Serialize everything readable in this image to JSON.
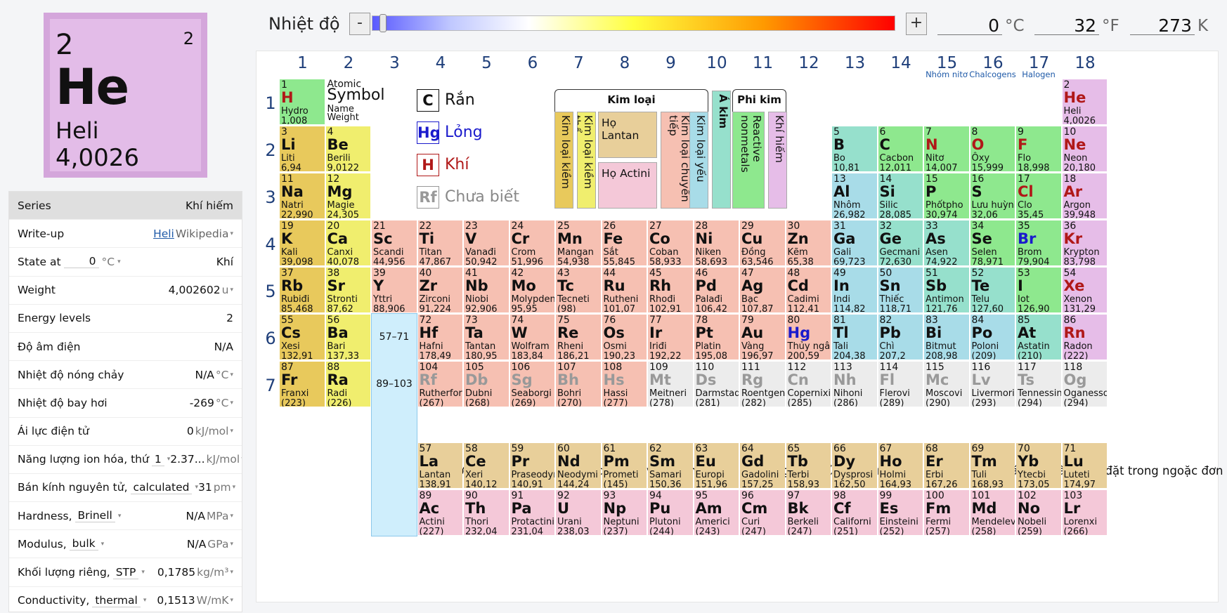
{
  "selected": {
    "number": "2",
    "symbol": "He",
    "name": "Heli",
    "weight": "4,0026",
    "shells": "2"
  },
  "temperature": {
    "label": "Nhiệt độ",
    "minus": "-",
    "plus": "+",
    "c": "0",
    "c_unit": "°C",
    "f": "32",
    "f_unit": "°F",
    "k": "273",
    "k_unit": "K"
  },
  "props": [
    {
      "label": "Series",
      "value": "Khí hiếm",
      "unit": ""
    },
    {
      "label": "Write-up",
      "link": "Heli",
      "value": "Wikipedia",
      "unit": ""
    },
    {
      "label": "State at",
      "input": "0",
      "input_unit": "°C",
      "value": "Khí",
      "unit": ""
    },
    {
      "label": "Weight",
      "value": "4,002602",
      "unit": "u"
    },
    {
      "label": "Energy levels",
      "value": "2",
      "unit": ""
    },
    {
      "label": "Độ âm điện",
      "value": "N/A",
      "unit": ""
    },
    {
      "label": "Nhiệt độ nóng chảy",
      "value": "N/A",
      "unit": "°C"
    },
    {
      "label": "Nhiệt độ bay hơi",
      "value": "-269",
      "unit": "°C"
    },
    {
      "label": "Ái lực điện tử",
      "value": "0",
      "unit": "kJ/mol"
    },
    {
      "label": "Năng lượng ion hóa, thứ",
      "select": "1",
      "value": "2.37...",
      "unit": "kJ/mol"
    },
    {
      "label": "Bán kính nguyên tử,",
      "select": "calculated",
      "value": "31",
      "unit": "pm"
    },
    {
      "label": "Hardness,",
      "select": "Brinell",
      "value": "N/A",
      "unit": "MPa"
    },
    {
      "label": "Modulus,",
      "select": "bulk",
      "value": "N/A",
      "unit": "GPa"
    },
    {
      "label": "Khối lượng riêng,",
      "select": "STP",
      "value": "0,1785",
      "unit": "kg/m³"
    },
    {
      "label": "Conductivity,",
      "select": "thermal",
      "value": "0,1513",
      "unit": "W/mK"
    }
  ],
  "groups": [
    "1",
    "2",
    "3",
    "4",
    "5",
    "6",
    "7",
    "8",
    "9",
    "10",
    "11",
    "12",
    "13",
    "14",
    "15",
    "16",
    "17",
    "18"
  ],
  "group_subs": {
    "15": "Nhóm nitơ",
    "16": "Chalcogens",
    "17": "Halogen"
  },
  "periods": [
    "1",
    "2",
    "3",
    "4",
    "5",
    "6",
    "7"
  ],
  "legend": {
    "key": {
      "n": "1",
      "s": "H",
      "nm": "Hydro",
      "w": "1,008"
    },
    "atomic": "Atomic",
    "symbol": "Symbol",
    "name": "Name",
    "weight": "Weight",
    "solid_sym": "C",
    "solid": "Rắn",
    "liquid_sym": "Hg",
    "liquid": "Lỏng",
    "gas_sym": "H",
    "gas": "Khí",
    "unk_sym": "Rf",
    "unk": "Chưa biết"
  },
  "categories": {
    "metal": "Kim loại",
    "nonmetal": "Phi kim",
    "alkali": "Kim loại kiềm",
    "alkaline": "Kim loại kiềm thổ",
    "lanth": "Họ Lantan",
    "actin": "Họ Actini",
    "trans": "Kim loại chuyển tiếp",
    "post": "Kim loại yếu",
    "metalloid": "Á kim",
    "reactive": "Reactive nonmetals",
    "noble": "Khí hiếm"
  },
  "placeholders": {
    "la": "57–71",
    "ac": "89–103"
  },
  "fblock_periods": [
    "6",
    "7"
  ],
  "note": "Với các nguyên tố không có đồng vị ổn định, khối lượng nguyên tử của đồng vị có thời gian bán rã dài nhất được đặt trong ngoặc đơn",
  "colors": {
    "alkali": "#e8c95c",
    "alkaline": "#f0ee6e",
    "trans": "#f6c0b2",
    "post": "#a8dce8",
    "metalloid": "#96e0cc",
    "reactive": "#8ee88e",
    "noble": "#e6bde8",
    "lanth": "#e8cf9a",
    "actin": "#f4c8d8",
    "unknown": "#ececec",
    "hydrogen": "#8ee88e",
    "gas_text": "#b01818",
    "liquid_text": "#1a1acc",
    "unknown_text": "#999999",
    "fblock_col": "#cfeefc"
  },
  "elements": [
    [
      "1",
      "H",
      "Hydro",
      "1,008",
      1,
      1,
      "hydrogen",
      "g"
    ],
    [
      "2",
      "He",
      "Heli",
      "4,0026",
      18,
      1,
      "noble",
      "g"
    ],
    [
      "3",
      "Li",
      "Liti",
      "6,94",
      1,
      2,
      "alkali",
      ""
    ],
    [
      "4",
      "Be",
      "Berili",
      "9,0122",
      2,
      2,
      "alkaline",
      ""
    ],
    [
      "5",
      "B",
      "Bo",
      "10,81",
      13,
      2,
      "metalloid",
      ""
    ],
    [
      "6",
      "C",
      "Cacbon",
      "12,011",
      14,
      2,
      "reactive",
      ""
    ],
    [
      "7",
      "N",
      "Nitơ",
      "14,007",
      15,
      2,
      "reactive",
      "g"
    ],
    [
      "8",
      "O",
      "Ôxy",
      "15,999",
      16,
      2,
      "reactive",
      "g"
    ],
    [
      "9",
      "F",
      "Flo",
      "18,998",
      17,
      2,
      "reactive",
      "g"
    ],
    [
      "10",
      "Ne",
      "Neon",
      "20,180",
      18,
      2,
      "noble",
      "g"
    ],
    [
      "11",
      "Na",
      "Natri",
      "22,990",
      1,
      3,
      "alkali",
      ""
    ],
    [
      "12",
      "Mg",
      "Magie",
      "24,305",
      2,
      3,
      "alkaline",
      ""
    ],
    [
      "13",
      "Al",
      "Nhôm",
      "26,982",
      13,
      3,
      "post",
      ""
    ],
    [
      "14",
      "Si",
      "Silic",
      "28,085",
      14,
      3,
      "metalloid",
      ""
    ],
    [
      "15",
      "P",
      "Phốtpho",
      "30,974",
      15,
      3,
      "reactive",
      ""
    ],
    [
      "16",
      "S",
      "Lưu huỳnh",
      "32,06",
      16,
      3,
      "reactive",
      ""
    ],
    [
      "17",
      "Cl",
      "Clo",
      "35,45",
      17,
      3,
      "reactive",
      "g"
    ],
    [
      "18",
      "Ar",
      "Argon",
      "39,948",
      18,
      3,
      "noble",
      "g"
    ],
    [
      "19",
      "K",
      "Kali",
      "39,098",
      1,
      4,
      "alkali",
      ""
    ],
    [
      "20",
      "Ca",
      "Canxi",
      "40,078",
      2,
      4,
      "alkaline",
      ""
    ],
    [
      "21",
      "Sc",
      "Scandi",
      "44,956",
      3,
      4,
      "trans",
      ""
    ],
    [
      "22",
      "Ti",
      "Titan",
      "47,867",
      4,
      4,
      "trans",
      ""
    ],
    [
      "23",
      "V",
      "Vanađi",
      "50,942",
      5,
      4,
      "trans",
      ""
    ],
    [
      "24",
      "Cr",
      "Crom",
      "51,996",
      6,
      4,
      "trans",
      ""
    ],
    [
      "25",
      "Mn",
      "Mangan",
      "54,938",
      7,
      4,
      "trans",
      ""
    ],
    [
      "26",
      "Fe",
      "Sắt",
      "55,845",
      8,
      4,
      "trans",
      ""
    ],
    [
      "27",
      "Co",
      "Coban",
      "58,933",
      9,
      4,
      "trans",
      ""
    ],
    [
      "28",
      "Ni",
      "Niken",
      "58,693",
      10,
      4,
      "trans",
      ""
    ],
    [
      "29",
      "Cu",
      "Đồng",
      "63,546",
      11,
      4,
      "trans",
      ""
    ],
    [
      "30",
      "Zn",
      "Kẽm",
      "65,38",
      12,
      4,
      "trans",
      ""
    ],
    [
      "31",
      "Ga",
      "Gali",
      "69,723",
      13,
      4,
      "post",
      ""
    ],
    [
      "32",
      "Ge",
      "Gecmani",
      "72,630",
      14,
      4,
      "metalloid",
      ""
    ],
    [
      "33",
      "As",
      "Asen",
      "74,922",
      15,
      4,
      "metalloid",
      ""
    ],
    [
      "34",
      "Se",
      "Selen",
      "78,971",
      16,
      4,
      "reactive",
      ""
    ],
    [
      "35",
      "Br",
      "Brom",
      "79,904",
      17,
      4,
      "reactive",
      "l"
    ],
    [
      "36",
      "Kr",
      "Krypton",
      "83,798",
      18,
      4,
      "noble",
      "g"
    ],
    [
      "37",
      "Rb",
      "Rubiđi",
      "85,468",
      1,
      5,
      "alkali",
      ""
    ],
    [
      "38",
      "Sr",
      "Stronti",
      "87,62",
      2,
      5,
      "alkaline",
      ""
    ],
    [
      "39",
      "Y",
      "Yttri",
      "88,906",
      3,
      5,
      "trans",
      ""
    ],
    [
      "40",
      "Zr",
      "Zirconi",
      "91,224",
      4,
      5,
      "trans",
      ""
    ],
    [
      "41",
      "Nb",
      "Niobi",
      "92,906",
      5,
      5,
      "trans",
      ""
    ],
    [
      "42",
      "Mo",
      "Molypden",
      "95,95",
      6,
      5,
      "trans",
      ""
    ],
    [
      "43",
      "Tc",
      "Tecneti",
      "(98)",
      7,
      5,
      "trans",
      ""
    ],
    [
      "44",
      "Ru",
      "Rutheni",
      "101,07",
      8,
      5,
      "trans",
      ""
    ],
    [
      "45",
      "Rh",
      "Rhođi",
      "102,91",
      9,
      5,
      "trans",
      ""
    ],
    [
      "46",
      "Pd",
      "Palađi",
      "106,42",
      10,
      5,
      "trans",
      ""
    ],
    [
      "47",
      "Ag",
      "Bạc",
      "107,87",
      11,
      5,
      "trans",
      ""
    ],
    [
      "48",
      "Cd",
      "Cadimi",
      "112,41",
      12,
      5,
      "trans",
      ""
    ],
    [
      "49",
      "In",
      "Indi",
      "114,82",
      13,
      5,
      "post",
      ""
    ],
    [
      "50",
      "Sn",
      "Thiếc",
      "118,71",
      14,
      5,
      "post",
      ""
    ],
    [
      "51",
      "Sb",
      "Antimon",
      "121,76",
      15,
      5,
      "metalloid",
      ""
    ],
    [
      "52",
      "Te",
      "Telu",
      "127,60",
      16,
      5,
      "metalloid",
      ""
    ],
    [
      "53",
      "I",
      "Iot",
      "126,90",
      17,
      5,
      "reactive",
      ""
    ],
    [
      "54",
      "Xe",
      "Xenon",
      "131,29",
      18,
      5,
      "noble",
      "g"
    ],
    [
      "55",
      "Cs",
      "Xesi",
      "132,91",
      1,
      6,
      "alkali",
      ""
    ],
    [
      "56",
      "Ba",
      "Bari",
      "137,33",
      2,
      6,
      "alkaline",
      ""
    ],
    [
      "72",
      "Hf",
      "Hafni",
      "178,49",
      4,
      6,
      "trans",
      ""
    ],
    [
      "73",
      "Ta",
      "Tantan",
      "180,95",
      5,
      6,
      "trans",
      ""
    ],
    [
      "74",
      "W",
      "Wolfram",
      "183,84",
      6,
      6,
      "trans",
      ""
    ],
    [
      "75",
      "Re",
      "Rheni",
      "186,21",
      7,
      6,
      "trans",
      ""
    ],
    [
      "76",
      "Os",
      "Osmi",
      "190,23",
      8,
      6,
      "trans",
      ""
    ],
    [
      "77",
      "Ir",
      "Iriđi",
      "192,22",
      9,
      6,
      "trans",
      ""
    ],
    [
      "78",
      "Pt",
      "Platin",
      "195,08",
      10,
      6,
      "trans",
      ""
    ],
    [
      "79",
      "Au",
      "Vàng",
      "196,97",
      11,
      6,
      "trans",
      ""
    ],
    [
      "80",
      "Hg",
      "Thủy ngân",
      "200,59",
      12,
      6,
      "trans",
      "l"
    ],
    [
      "81",
      "Tl",
      "Tali",
      "204,38",
      13,
      6,
      "post",
      ""
    ],
    [
      "82",
      "Pb",
      "Chì",
      "207,2",
      14,
      6,
      "post",
      ""
    ],
    [
      "83",
      "Bi",
      "Bitmut",
      "208,98",
      15,
      6,
      "post",
      ""
    ],
    [
      "84",
      "Po",
      "Poloni",
      "(209)",
      16,
      6,
      "post",
      ""
    ],
    [
      "85",
      "At",
      "Astatin",
      "(210)",
      17,
      6,
      "metalloid",
      ""
    ],
    [
      "86",
      "Rn",
      "Radon",
      "(222)",
      18,
      6,
      "noble",
      "g"
    ],
    [
      "87",
      "Fr",
      "Franxi",
      "(223)",
      1,
      7,
      "alkali",
      ""
    ],
    [
      "88",
      "Ra",
      "Radi",
      "(226)",
      2,
      7,
      "alkaline",
      ""
    ],
    [
      "104",
      "Rf",
      "Rutherfordi",
      "(267)",
      4,
      7,
      "trans",
      "u"
    ],
    [
      "105",
      "Db",
      "Dubni",
      "(268)",
      5,
      7,
      "trans",
      "u"
    ],
    [
      "106",
      "Sg",
      "Seaborgi",
      "(269)",
      6,
      7,
      "trans",
      "u"
    ],
    [
      "107",
      "Bh",
      "Bohri",
      "(270)",
      7,
      7,
      "trans",
      "u"
    ],
    [
      "108",
      "Hs",
      "Hassi",
      "(277)",
      8,
      7,
      "trans",
      "u"
    ],
    [
      "109",
      "Mt",
      "Meitneri",
      "(278)",
      9,
      7,
      "unknown",
      "u"
    ],
    [
      "110",
      "Ds",
      "Darmstadti",
      "(281)",
      10,
      7,
      "unknown",
      "u"
    ],
    [
      "111",
      "Rg",
      "Roentgeni",
      "(282)",
      11,
      7,
      "unknown",
      "u"
    ],
    [
      "112",
      "Cn",
      "Copernixi",
      "(285)",
      12,
      7,
      "unknown",
      "u"
    ],
    [
      "113",
      "Nh",
      "Nihoni",
      "(286)",
      13,
      7,
      "unknown",
      "u"
    ],
    [
      "114",
      "Fl",
      "Flerovi",
      "(289)",
      14,
      7,
      "unknown",
      "u"
    ],
    [
      "115",
      "Mc",
      "Moscovi",
      "(290)",
      15,
      7,
      "unknown",
      "u"
    ],
    [
      "116",
      "Lv",
      "Livermori",
      "(293)",
      16,
      7,
      "unknown",
      "u"
    ],
    [
      "117",
      "Ts",
      "Tennessine",
      "(294)",
      17,
      7,
      "unknown",
      "u"
    ],
    [
      "118",
      "Og",
      "Oganesson",
      "(294)",
      18,
      7,
      "unknown",
      "u"
    ],
    [
      "57",
      "La",
      "Lantan",
      "138,91",
      4,
      9,
      "lanth",
      ""
    ],
    [
      "58",
      "Ce",
      "Xeri",
      "140,12",
      5,
      9,
      "lanth",
      ""
    ],
    [
      "59",
      "Pr",
      "Praseodymi",
      "140,91",
      6,
      9,
      "lanth",
      ""
    ],
    [
      "60",
      "Nd",
      "Neodymi",
      "144,24",
      7,
      9,
      "lanth",
      ""
    ],
    [
      "61",
      "Pm",
      "Prometi",
      "(145)",
      8,
      9,
      "lanth",
      ""
    ],
    [
      "62",
      "Sm",
      "Samari",
      "150,36",
      9,
      9,
      "lanth",
      ""
    ],
    [
      "63",
      "Eu",
      "Europi",
      "151,96",
      10,
      9,
      "lanth",
      ""
    ],
    [
      "64",
      "Gd",
      "Gadolini",
      "157,25",
      11,
      9,
      "lanth",
      ""
    ],
    [
      "65",
      "Tb",
      "Terbi",
      "158,93",
      12,
      9,
      "lanth",
      ""
    ],
    [
      "66",
      "Dy",
      "Dysprosi",
      "162,50",
      13,
      9,
      "lanth",
      ""
    ],
    [
      "67",
      "Ho",
      "Holmi",
      "164,93",
      14,
      9,
      "lanth",
      ""
    ],
    [
      "68",
      "Er",
      "Erbi",
      "167,26",
      15,
      9,
      "lanth",
      ""
    ],
    [
      "69",
      "Tm",
      "Tuli",
      "168,93",
      16,
      9,
      "lanth",
      ""
    ],
    [
      "70",
      "Yb",
      "Ytecbi",
      "173,05",
      17,
      9,
      "lanth",
      ""
    ],
    [
      "71",
      "Lu",
      "Luteti",
      "174,97",
      18,
      9,
      "lanth",
      ""
    ],
    [
      "89",
      "Ac",
      "Actini",
      "(227)",
      4,
      10,
      "actin",
      ""
    ],
    [
      "90",
      "Th",
      "Thori",
      "232,04",
      5,
      10,
      "actin",
      ""
    ],
    [
      "91",
      "Pa",
      "Protactini",
      "231,04",
      6,
      10,
      "actin",
      ""
    ],
    [
      "92",
      "U",
      "Urani",
      "238,03",
      7,
      10,
      "actin",
      ""
    ],
    [
      "93",
      "Np",
      "Neptuni",
      "(237)",
      8,
      10,
      "actin",
      ""
    ],
    [
      "94",
      "Pu",
      "Plutoni",
      "(244)",
      9,
      10,
      "actin",
      ""
    ],
    [
      "95",
      "Am",
      "Americi",
      "(243)",
      10,
      10,
      "actin",
      ""
    ],
    [
      "96",
      "Cm",
      "Curi",
      "(247)",
      11,
      10,
      "actin",
      ""
    ],
    [
      "97",
      "Bk",
      "Berkeli",
      "(247)",
      12,
      10,
      "actin",
      ""
    ],
    [
      "98",
      "Cf",
      "Californi",
      "(251)",
      13,
      10,
      "actin",
      ""
    ],
    [
      "99",
      "Es",
      "Einsteini",
      "(252)",
      14,
      10,
      "actin",
      ""
    ],
    [
      "100",
      "Fm",
      "Fermi",
      "(257)",
      15,
      10,
      "actin",
      ""
    ],
    [
      "101",
      "Md",
      "Mendelevi",
      "(258)",
      16,
      10,
      "actin",
      ""
    ],
    [
      "102",
      "No",
      "Nobeli",
      "(259)",
      17,
      10,
      "actin",
      ""
    ],
    [
      "103",
      "Lr",
      "Lorenxi",
      "(266)",
      18,
      10,
      "actin",
      ""
    ]
  ]
}
